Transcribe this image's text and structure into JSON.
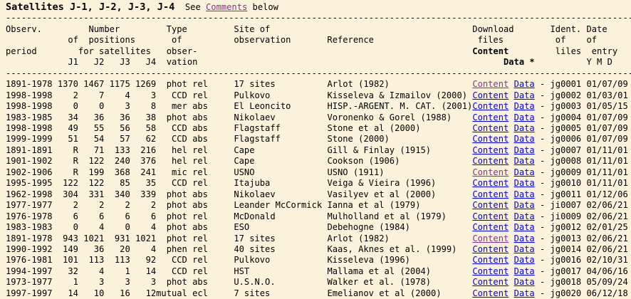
{
  "page_background": "#FBF2DB",
  "link_colors": {
    "normal": "#0000EE",
    "visited": "#86338C"
  },
  "title": {
    "name": "Satellites J-1, J-2, J-3, J-4",
    "see_prefix": "  See ",
    "comments": "Comments",
    "suffix": " below"
  },
  "separator": {
    "char": "-",
    "count": 121
  },
  "header_lines": [
    [
      {
        "t": "Observ.         Number         Type         Site of                                       Download       Ident. Date",
        "b": false
      }
    ],
    [
      {
        "t": "            of  positions       of          observation       Reference                    files          of    of",
        "b": false
      }
    ],
    [
      {
        "t": "period        for satellites   obser-                                                     ",
        "b": false
      },
      {
        "t": "Content",
        "b": true
      },
      {
        "t": "         liles  entry",
        "b": false
      }
    ],
    [
      {
        "t": "            J1   J2   J3   J4  vation                                                           ",
        "b": false
      },
      {
        "t": "Data *",
        "b": true
      },
      {
        "t": "          Y M D",
        "b": false
      }
    ]
  ],
  "links": {
    "content": "Content",
    "data": "Data",
    "dash": "-"
  },
  "rows": [
    {
      "period": "1891-1978",
      "j1": "1370",
      "j2": "1467",
      "j3": "1175",
      "j4": "1269",
      "type": "phot",
      "mode": "rel",
      "site": "17 sites",
      "ref": "Arlot (1982)",
      "ident": "jg0001",
      "date": "01/07/09",
      "content_visited": true
    },
    {
      "period": "1998-1998",
      "j1": "2",
      "j2": "7",
      "j3": "4",
      "j4": "3",
      "type": "CCD",
      "mode": "rel",
      "site": "Pulkovo",
      "ref": "Kisseleva & Izmailov (2000)",
      "ident": "jg0002",
      "date": "01/03/01",
      "content_visited": false
    },
    {
      "period": "1998-1998",
      "j1": "0",
      "j2": "0",
      "j3": "3",
      "j4": "8",
      "type": "mer",
      "mode": "abs",
      "site": "El Leoncito",
      "ref": "HISP.-ARGENT. M. CAT. (2001)",
      "ident": "jg0003",
      "date": "01/05/15",
      "content_visited": false
    },
    {
      "period": "1983-1985",
      "j1": "34",
      "j2": "36",
      "j3": "36",
      "j4": "38",
      "type": "phot",
      "mode": "abs",
      "site": "Nikolaev",
      "ref": "Voronenko & Gorel (1988)",
      "ident": "jg0004",
      "date": "01/07/09",
      "content_visited": false
    },
    {
      "period": "1998-1998",
      "j1": "49",
      "j2": "55",
      "j3": "56",
      "j4": "58",
      "type": "CCD",
      "mode": "abs",
      "site": "Flagstaff",
      "ref": "Stone et al (2000)",
      "ident": "jg0005",
      "date": "01/07/09",
      "content_visited": false
    },
    {
      "period": "1999-1999",
      "j1": "51",
      "j2": "54",
      "j3": "57",
      "j4": "62",
      "type": "CCD",
      "mode": "abs",
      "site": "Flagstaff",
      "ref": "Stone (2000)",
      "ident": "jg0006",
      "date": "01/07/09",
      "content_visited": false
    },
    {
      "period": "1891-1891",
      "j1": "R",
      "j2": "71",
      "j3": "133",
      "j4": "216",
      "type": "hel",
      "mode": "rel",
      "site": "Cape",
      "ref": "Gill & Finlay (1915)",
      "ident": "jg0007",
      "date": "01/11/01",
      "content_visited": false
    },
    {
      "period": "1901-1902",
      "j1": "R",
      "j2": "122",
      "j3": "240",
      "j4": "376",
      "type": "hel",
      "mode": "rel",
      "site": "Cape",
      "ref": "Cookson (1906)",
      "ident": "jg0008",
      "date": "01/11/01",
      "content_visited": false
    },
    {
      "period": "1902-1906",
      "j1": "R",
      "j2": "199",
      "j3": "368",
      "j4": "241",
      "type": "mic",
      "mode": "rel",
      "site": "USNO",
      "ref": "USNO (1911)",
      "ident": "jg0009",
      "date": "01/11/01",
      "content_visited": true
    },
    {
      "period": "1995-1995",
      "j1": "122",
      "j2": "122",
      "j3": "85",
      "j4": "35",
      "type": "CCD",
      "mode": "rel",
      "site": "Itajuba",
      "ref": "Veiga & Vieira (1996)",
      "ident": "jg0010",
      "date": "01/11/01",
      "content_visited": false
    },
    {
      "period": "1962-1998",
      "j1": "304",
      "j2": "331",
      "j3": "340",
      "j4": "339",
      "type": "phot",
      "mode": "abs",
      "site": "Nikolaev",
      "ref": "Vasilyev et al (2000)",
      "ident": "jg0011",
      "date": "01/12/06",
      "content_visited": false
    },
    {
      "period": "1977-1977",
      "j1": "2",
      "j2": "2",
      "j3": "2",
      "j4": "2",
      "type": "phot",
      "mode": "abs",
      "site": "Leander McCormick",
      "ref": "Ianna et al (1979)",
      "ident": "ji0007",
      "date": "02/06/21",
      "content_visited": false
    },
    {
      "period": "1976-1978",
      "j1": "6",
      "j2": "6",
      "j3": "6",
      "j4": "6",
      "type": "phot",
      "mode": "rel",
      "site": "McDonald",
      "ref": "Mulholland et al (1979)",
      "ident": "ji0009",
      "date": "02/06/21",
      "content_visited": false
    },
    {
      "period": "1983-1983",
      "j1": "0",
      "j2": "4",
      "j3": "0",
      "j4": "4",
      "type": "phot",
      "mode": "abs",
      "site": "ESO",
      "ref": "Debehogne (1984)",
      "ident": "jg0012",
      "date": "02/01/25",
      "content_visited": false
    },
    {
      "period": "1891-1978",
      "j1": "943",
      "j2": "1021",
      "j3": "931",
      "j4": "1021",
      "type": "phot",
      "mode": "rel",
      "site": "17 sites",
      "ref": "Arlot (1982)",
      "ident": "jg0013",
      "date": "02/06/21",
      "content_visited": true
    },
    {
      "period": "1990-1992",
      "j1": "149",
      "j2": "36",
      "j3": "20",
      "j4": "4",
      "type": "phen",
      "mode": "rel",
      "site": "40 sites",
      "ref": "Kaas, Aknes et al. (1999)",
      "ident": "jg0014",
      "date": "02/06/21",
      "content_visited": false
    },
    {
      "period": "1976-1981",
      "j1": "101",
      "j2": "113",
      "j3": "113",
      "j4": "92",
      "type": "CCD",
      "mode": "rel",
      "site": "Pulkovo",
      "ref": "Kisseleva (1996)",
      "ident": "jg0016",
      "date": "02/10/31",
      "content_visited": false
    },
    {
      "period": "1994-1997",
      "j1": "32",
      "j2": "4",
      "j3": "1",
      "j4": "14",
      "type": "CCD",
      "mode": "rel",
      "site": "HST",
      "ref": "Mallama et al (2004)",
      "ident": "jg0017",
      "date": "04/06/16",
      "content_visited": false
    },
    {
      "period": "1973-1977",
      "j1": "1",
      "j2": "3",
      "j3": "3",
      "j4": "3",
      "type": "phot",
      "mode": "abs",
      "site": "U.S.N.O.",
      "ref": "Walker et al. (1978)",
      "ident": "jg0018",
      "date": "05/09/24",
      "content_visited": false
    },
    {
      "period": "1997-1997",
      "j1": "14",
      "j2": "10",
      "j3": "16",
      "j4": "12",
      "type": "mutual",
      "mode": "ecl",
      "site": "7 sites",
      "ref": "Emelianov et al (2000)",
      "ident": "jg0020",
      "date": "06/12/18",
      "content_visited": false
    }
  ]
}
